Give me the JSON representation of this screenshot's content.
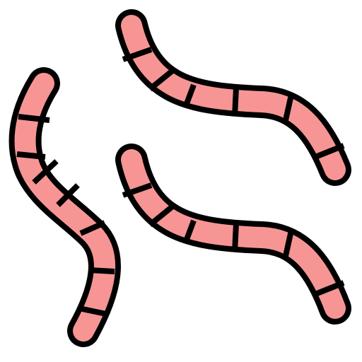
{
  "icon": {
    "name": "worms-icon",
    "worm_count": 3
  },
  "colors": {
    "background": "#ffffff",
    "outline": "#000000",
    "body": "#f79595"
  }
}
